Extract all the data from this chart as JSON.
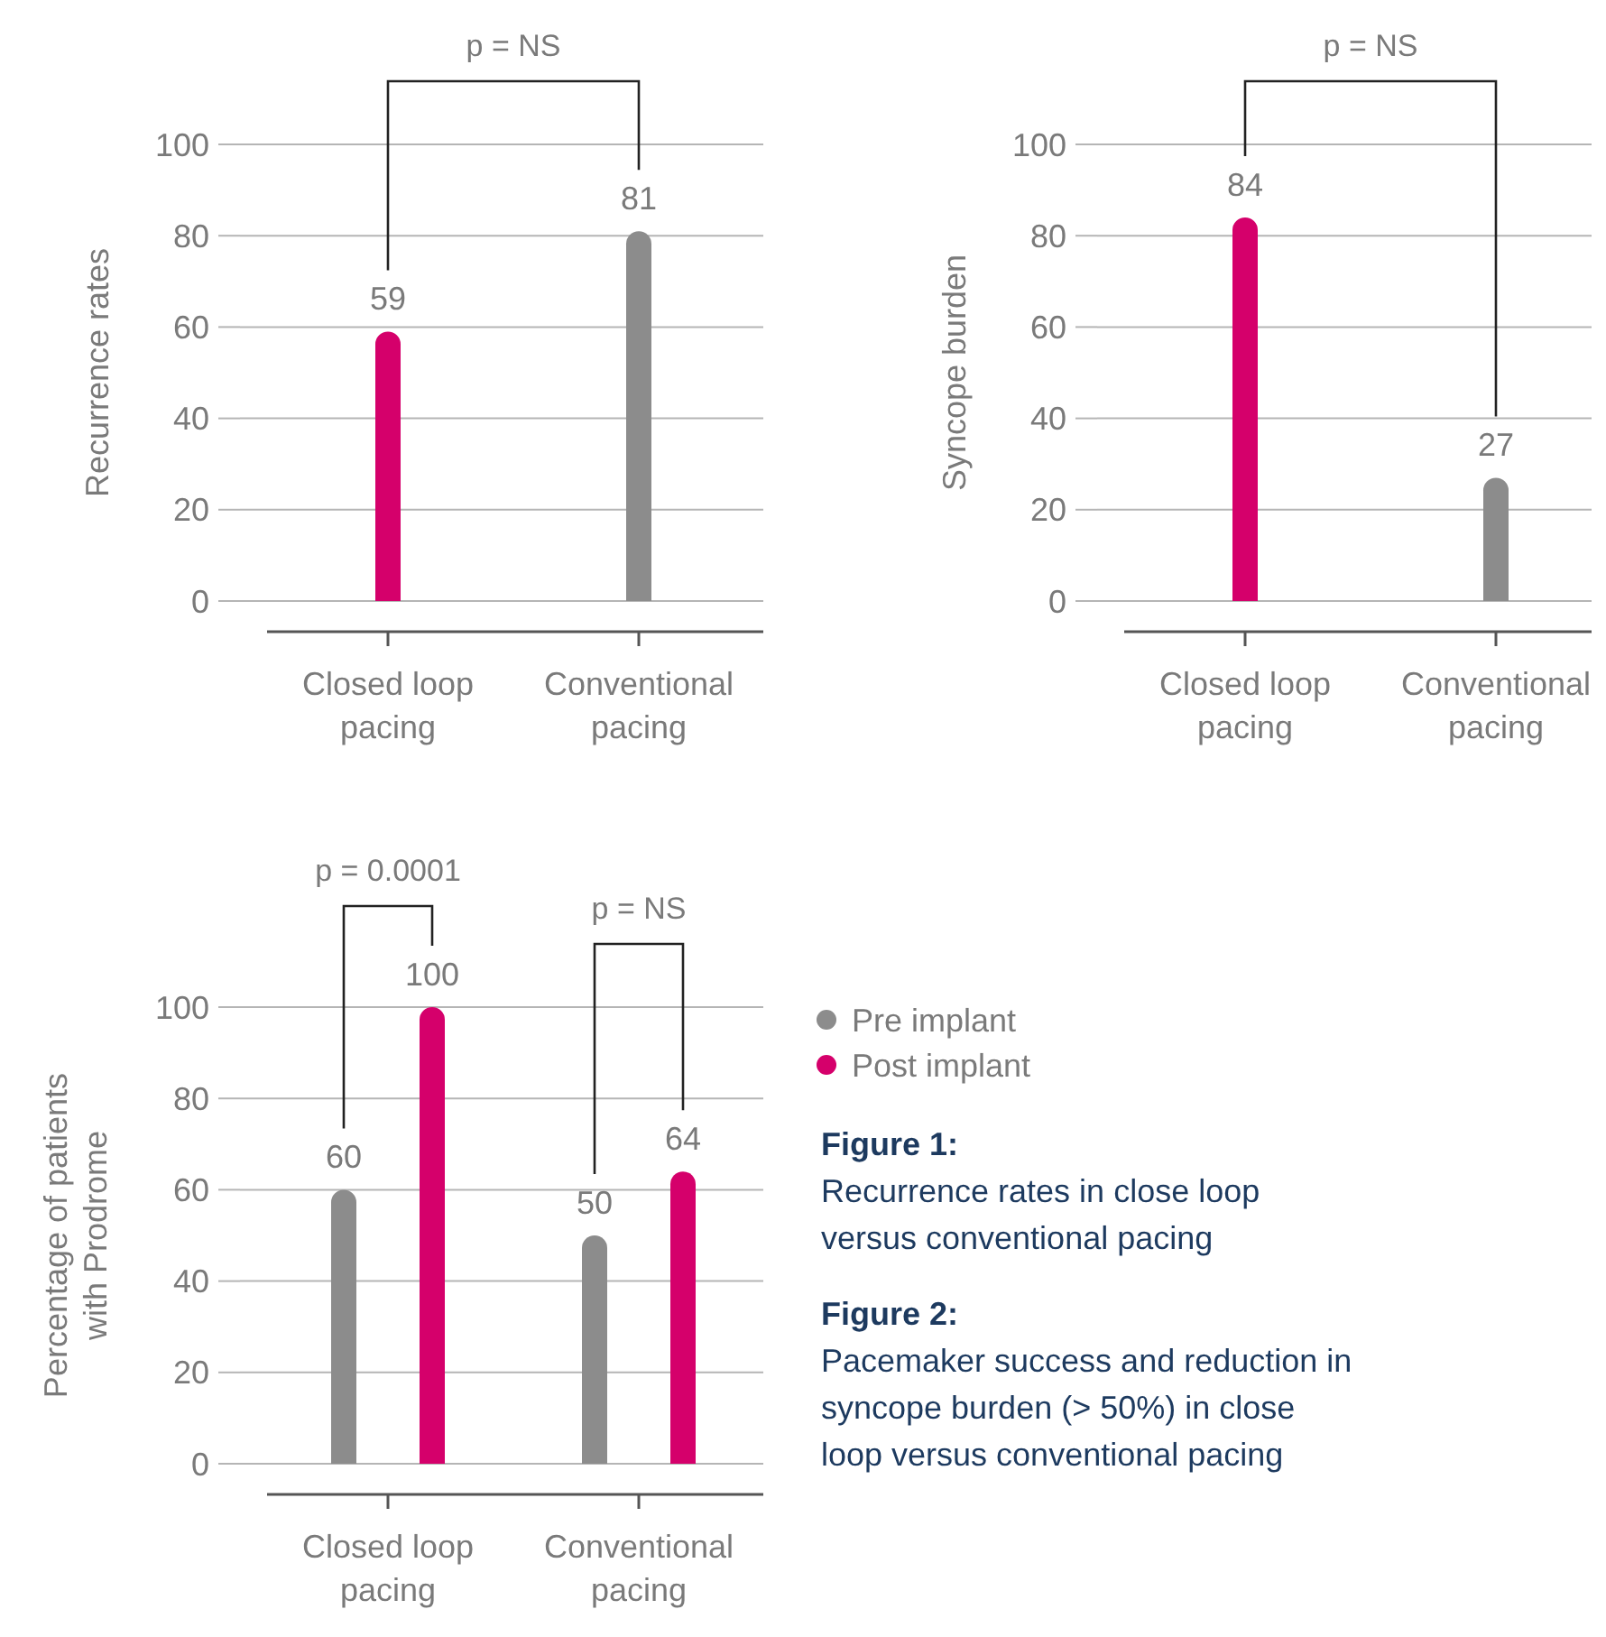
{
  "chart_data": [
    {
      "type": "bar",
      "ylabel": "Recurrence rates",
      "categories": [
        "Closed loop pacing",
        "Conventional pacing"
      ],
      "values": [
        59,
        81
      ],
      "colors": [
        "#d5006b",
        "#8c8c8c"
      ],
      "ylim": [
        0,
        100
      ],
      "yticks": [
        0,
        20,
        40,
        60,
        80,
        100
      ],
      "grid": "y",
      "data_labels": true,
      "annotations": [
        "p = NS"
      ]
    },
    {
      "type": "bar",
      "ylabel": "Syncope burden",
      "categories": [
        "Closed loop pacing",
        "Conventional pacing"
      ],
      "values": [
        84,
        27
      ],
      "colors": [
        "#d5006b",
        "#8c8c8c"
      ],
      "ylim": [
        0,
        100
      ],
      "yticks": [
        0,
        20,
        40,
        60,
        80,
        100
      ],
      "grid": "y",
      "data_labels": true,
      "annotations": [
        "p = NS"
      ]
    },
    {
      "type": "bar",
      "ylabel": "Percentage of patients with Prodrome",
      "categories": [
        "Closed loop pacing",
        "Conventional pacing"
      ],
      "series": [
        {
          "name": "Pre implant",
          "color": "#8c8c8c",
          "values": [
            60,
            50
          ]
        },
        {
          "name": "Post implant",
          "color": "#d5006b",
          "values": [
            100,
            64
          ]
        }
      ],
      "ylim": [
        0,
        100
      ],
      "yticks": [
        0,
        20,
        40,
        60,
        80,
        100
      ],
      "grid": "y",
      "data_labels": true,
      "legend": "right",
      "annotations": [
        "p = 0.0001",
        "p = NS"
      ]
    },
    {
      "type": "other",
      "annotations": [
        "Figure 1:",
        "Recurrence rates in close loop versus conventional pacing",
        "Figure 2:",
        "Pacemaker success and reduction in syncope burden (> 50%) in close loop versus conventional pacing"
      ]
    }
  ]
}
